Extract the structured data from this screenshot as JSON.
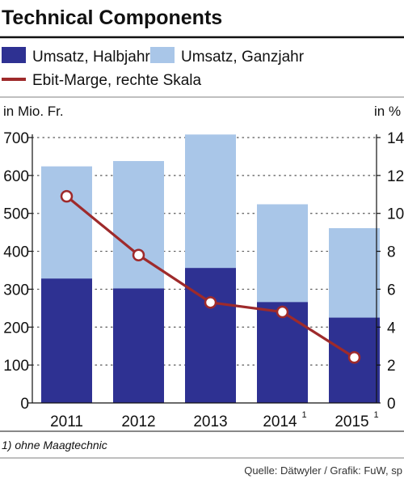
{
  "chart_data": {
    "type": "bar",
    "stacked": true,
    "title": "Technical Components",
    "categories": [
      "2011",
      "2012",
      "2013",
      "2014",
      "2015"
    ],
    "category_footnote_marks": [
      "",
      "",
      "",
      "1",
      "1"
    ],
    "series": [
      {
        "name": "Umsatz, Halbjahr",
        "type": "bar",
        "values": [
          328,
          302,
          356,
          266,
          225
        ],
        "color": "#2e3192"
      },
      {
        "name": "Umsatz, Ganzjahr",
        "type": "bar",
        "values": [
          624,
          638,
          708,
          524,
          461
        ],
        "color": "#a9c6e8"
      },
      {
        "name": "Ebit-Marge, rechte Skala",
        "type": "line",
        "axis": "right",
        "values": [
          10.9,
          7.8,
          5.3,
          4.8,
          2.4
        ],
        "color": "#9e2a2b"
      }
    ],
    "left_axis": {
      "label": "in Mio. Fr.",
      "ylim": [
        0,
        700
      ],
      "ticks": [
        "0",
        "100",
        "200",
        "300",
        "400",
        "500",
        "600",
        "700"
      ]
    },
    "right_axis": {
      "label": "in %",
      "ylim": [
        0,
        14
      ],
      "ticks": [
        "0",
        "2",
        "4",
        "6",
        "8",
        "10",
        "12",
        "14"
      ]
    },
    "grid": "dotted horizontal",
    "legend_placement": "top",
    "footnote": "1) ohne Maagtechnic",
    "source": "Quelle: Dätwyler / Grafik: FuW, sp"
  }
}
